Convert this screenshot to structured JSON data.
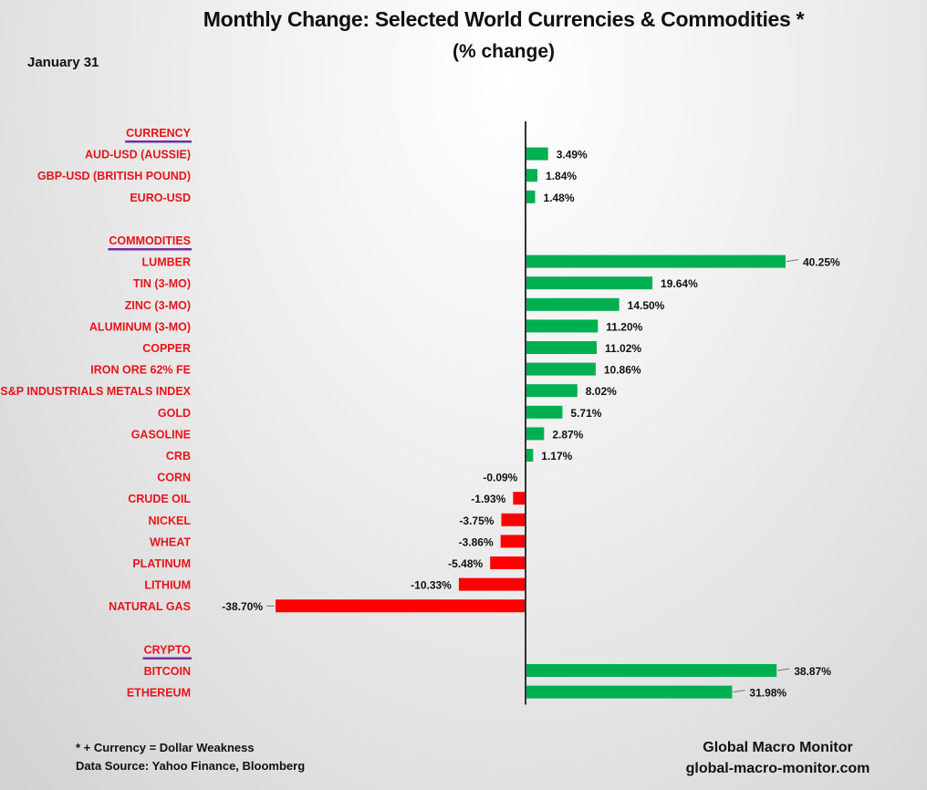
{
  "header": {
    "title": "Monthly Change: Selected World Currencies & Commodities *",
    "subtitle": "(% change)",
    "date": "January 31"
  },
  "footer": {
    "note": "* + Currency = Dollar Weakness",
    "source": "Data Source:  Yahoo Finance, Bloomberg",
    "brand": "Global Macro Monitor",
    "website": "global-macro-monitor.com"
  },
  "colors": {
    "positive": "#00b050",
    "negative": "#ff0000",
    "label": "#e8141b",
    "section_underline": "#7030a0",
    "axis": "#333333"
  },
  "chart_data": {
    "type": "bar",
    "orientation": "horizontal",
    "title": "Monthly Change: Selected World Currencies & Commodities *",
    "subtitle": "(% change)",
    "xlabel": "",
    "ylabel": "",
    "value_unit": "%",
    "grid": false,
    "legend": "none",
    "sections": [
      {
        "name": "CURRENCY",
        "items": [
          {
            "label": "AUD-USD (AUSSIE)",
            "value": 3.49,
            "display": "3.49%"
          },
          {
            "label": "GBP-USD (BRITISH POUND)",
            "value": 1.84,
            "display": "1.84%"
          },
          {
            "label": "EURO-USD",
            "value": 1.48,
            "display": "1.48%"
          }
        ]
      },
      {
        "name": "COMMODITIES",
        "items": [
          {
            "label": "LUMBER",
            "value": 40.25,
            "display": "40.25%"
          },
          {
            "label": "TIN (3-MO)",
            "value": 19.64,
            "display": "19.64%"
          },
          {
            "label": "ZINC (3-MO)",
            "value": 14.5,
            "display": "14.50%"
          },
          {
            "label": "ALUMINUM (3-MO)",
            "value": 11.2,
            "display": "11.20%"
          },
          {
            "label": "COPPER",
            "value": 11.02,
            "display": "11.02%"
          },
          {
            "label": "IRON ORE 62% FE",
            "value": 10.86,
            "display": "10.86%"
          },
          {
            "label": "S&P INDUSTRIALS METALS INDEX",
            "value": 8.02,
            "display": "8.02%"
          },
          {
            "label": "GOLD",
            "value": 5.71,
            "display": "5.71%"
          },
          {
            "label": "GASOLINE",
            "value": 2.87,
            "display": "2.87%"
          },
          {
            "label": "CRB",
            "value": 1.17,
            "display": "1.17%"
          },
          {
            "label": "CORN",
            "value": -0.09,
            "display": "-0.09%"
          },
          {
            "label": "CRUDE OIL",
            "value": -1.93,
            "display": "-1.93%"
          },
          {
            "label": "NICKEL",
            "value": -3.75,
            "display": "-3.75%"
          },
          {
            "label": "WHEAT",
            "value": -3.86,
            "display": "-3.86%"
          },
          {
            "label": "PLATINUM",
            "value": -5.48,
            "display": "-5.48%"
          },
          {
            "label": "LITHIUM",
            "value": -10.33,
            "display": "-10.33%"
          },
          {
            "label": "NATURAL GAS",
            "value": -38.7,
            "display": "-38.70%"
          }
        ]
      },
      {
        "name": "CRYPTO",
        "items": [
          {
            "label": "BITCOIN",
            "value": 38.87,
            "display": "38.87%"
          },
          {
            "label": "ETHEREUM",
            "value": 31.98,
            "display": "31.98%"
          }
        ]
      }
    ],
    "xlim": [
      -40,
      42
    ]
  }
}
